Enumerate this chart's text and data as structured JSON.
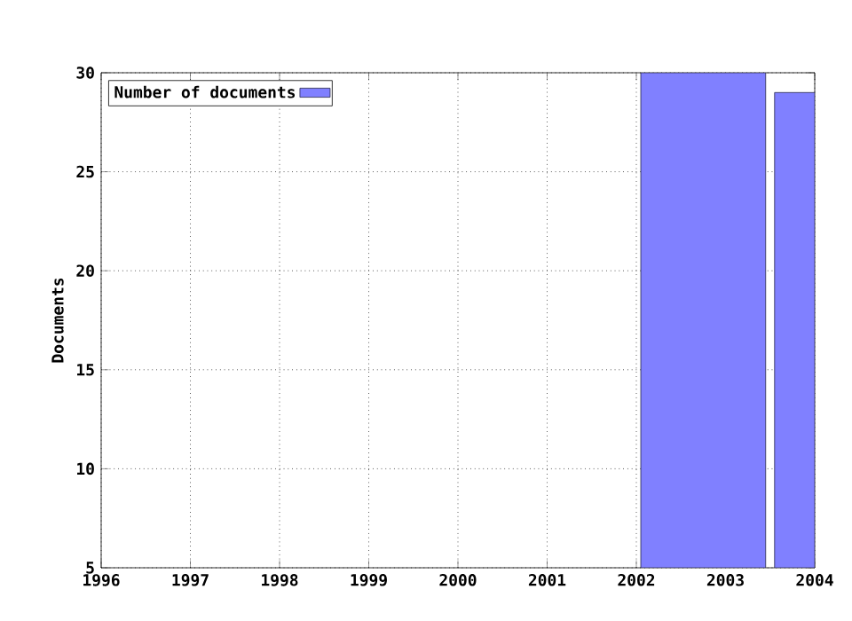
{
  "chart_data": {
    "type": "histogram",
    "ylabel": "Documents",
    "bins": [
      2002.05,
      2003.45,
      2003.55,
      2004
    ],
    "series": [
      {
        "name": "Number of documents",
        "color": "#8080ff",
        "values": [
          30,
          null,
          29
        ]
      }
    ],
    "xlim": [
      1996,
      2004
    ],
    "xticks": [
      1996,
      1997,
      1998,
      1999,
      2000,
      2001,
      2002,
      2003,
      2004
    ],
    "ylim": [
      5,
      30
    ],
    "yticks": [
      5,
      10,
      15,
      20,
      25,
      30
    ],
    "grid": true,
    "legend": "top left"
  }
}
